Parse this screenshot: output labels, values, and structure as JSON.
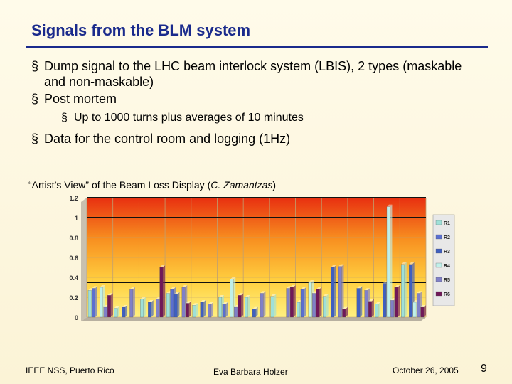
{
  "slide": {
    "title": "Signals from the BLM system",
    "caption_prefix": "“Artist’s View” of the Beam Loss Display (",
    "caption_author": "C. Zamantzas",
    "caption_suffix": ")"
  },
  "bullets": [
    {
      "marker": "§",
      "text": "Dump signal to the LHC beam interlock system (LBIS), 2 types (maskable and non-maskable)"
    },
    {
      "marker": "§",
      "text": "Post mortem"
    },
    {
      "marker": "§",
      "text": "Up to 1000 turns plus averages of 10 minutes"
    },
    {
      "marker": "§",
      "text": "Data for the control room and logging (1Hz)"
    }
  ],
  "footer": {
    "left": "IEEE NSS, Puerto Rico",
    "center": "Eva Barbara Holzer",
    "date": "October 26, 2005",
    "page": "9"
  },
  "chart_data": {
    "type": "bar",
    "style": "3d",
    "y_ticks": [
      "1.2",
      "1",
      "0.8",
      "0.6",
      "0.4",
      "0.2",
      "0"
    ],
    "ylim": [
      0,
      1.2
    ],
    "threshold_lines": [
      1.2,
      1.0,
      0.35
    ],
    "legend": [
      "R1",
      "R2",
      "R3",
      "R4",
      "R5",
      "R6"
    ],
    "series_colors": [
      "#9fe0d8",
      "#5a6fd0",
      "#3f5fc0",
      "#c0f0ea",
      "#8080c8",
      "#701858"
    ],
    "groups": [
      [
        0.27,
        0.29,
        0.0,
        0.3,
        0.1,
        0.22
      ],
      [
        0.09,
        0.0,
        0.1,
        0.0,
        0.28,
        0.0
      ],
      [
        0.18,
        0.0,
        0.15,
        0.0,
        0.18,
        0.5
      ],
      [
        0.24,
        0.28,
        0.23,
        0.0,
        0.3,
        0.14
      ],
      [
        0.12,
        0.0,
        0.15,
        0.0,
        0.13,
        0.0
      ],
      [
        0.2,
        0.13,
        0.0,
        0.38,
        0.1,
        0.22
      ],
      [
        0.2,
        0.0,
        0.08,
        0.0,
        0.24,
        0.0
      ],
      [
        0.21,
        0.0,
        0.0,
        0.0,
        0.29,
        0.3
      ],
      [
        0.15,
        0.28,
        0.0,
        0.35,
        0.24,
        0.28
      ],
      [
        0.21,
        0.0,
        0.5,
        0.0,
        0.51,
        0.08
      ],
      [
        0.0,
        0.0,
        0.29,
        0.0,
        0.27,
        0.16
      ],
      [
        0.13,
        0.0,
        0.34,
        1.11,
        0.17,
        0.3
      ],
      [
        0.53,
        0.0,
        0.53,
        0.15,
        0.24,
        0.1
      ]
    ]
  }
}
